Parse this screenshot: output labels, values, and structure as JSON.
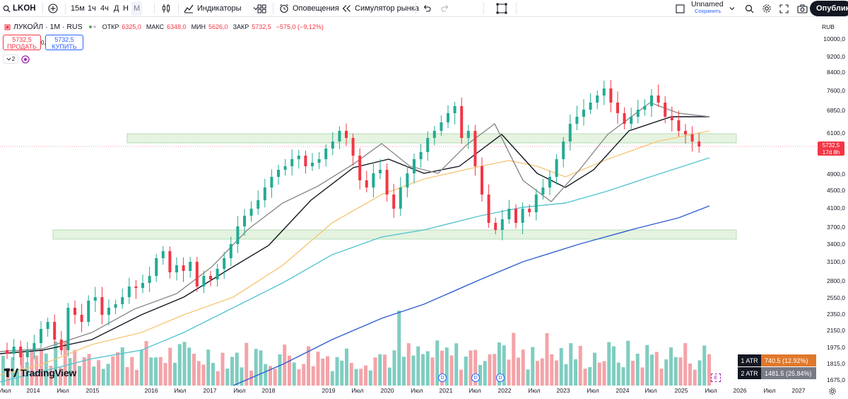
{
  "toolbar": {
    "symbol": "LKOH",
    "intervals": [
      "15м",
      "1ч",
      "4ч",
      "Д",
      "Н",
      "М"
    ],
    "active_interval": "М",
    "indicators_label": "Индикаторы",
    "alerts_label": "Оповещения",
    "replay_label": "Симулятор рынка",
    "layout_name": "Unnamed",
    "layout_status": "Сохранить",
    "publish_label": "Опублик"
  },
  "legend": {
    "title": "ЛУКОЙЛ · 1М · RUS",
    "open_label": "ОТКР",
    "open": "6325,0",
    "high_label": "МАКС",
    "high": "6348,0",
    "low_label": "МИН",
    "low": "5626,0",
    "close_label": "ЗАКР",
    "close": "5732,5",
    "change": "−575,0 (−9,12%)",
    "sell_price": "5732,5",
    "sell_label": "ПРОДАТЬ",
    "buy_price": "5732,5",
    "buy_label": "КУПИТЬ",
    "spread": "0,0",
    "indicators_count": "2"
  },
  "price_axis": {
    "currency": "RUB",
    "ticks": [
      "10000,0",
      "9200,0",
      "8400,0",
      "7600,0",
      "6850,0",
      "6100,0",
      "4900,0",
      "4500,0",
      "4100,0",
      "3700,0",
      "3400,0",
      "3100,0",
      "2800,0",
      "2550,0",
      "2350,0",
      "2150,0",
      "1975,0",
      "1815,0",
      "1675,0"
    ],
    "last_price": "5732,5",
    "countdown": "17d 8h"
  },
  "time_axis": {
    "labels": [
      "Июл",
      "2014",
      "Июл",
      "2015",
      "2016",
      "Июл",
      "2017",
      "Июл",
      "2018",
      "2019",
      "Июл",
      "2020",
      "Июл",
      "2021",
      "Июл",
      "2022",
      "Июл",
      "2023",
      "Июл",
      "2024",
      "Июл",
      "2025",
      "Июл",
      "2026",
      "Июл",
      "2027"
    ]
  },
  "atr": [
    {
      "label": "1 ATR",
      "value": "740.5 (12.92%)",
      "color": "#e0782b"
    },
    {
      "label": "2 ATR",
      "value": "1481.5 (25.84%)",
      "color": "#787b86"
    }
  ],
  "events": [
    "D",
    "D",
    "D"
  ],
  "earnings_marker": "E",
  "logo_text": "TradingView",
  "colors": {
    "up": "#22ab94",
    "down": "#f23645",
    "volume_up": "#7fcdc1",
    "volume_down": "#f4a3a8",
    "zone": "#dff0d8"
  }
}
